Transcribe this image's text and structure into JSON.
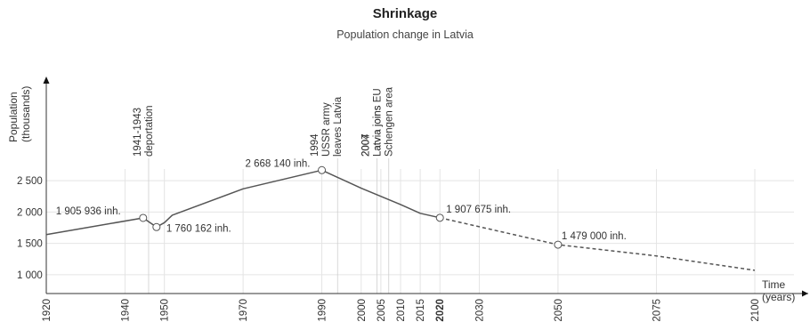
{
  "chart_data": {
    "type": "line",
    "title": "Shrinkage",
    "subtitle": "Population change in Latvia",
    "ylabel_lines": [
      "Population",
      "(thousands)"
    ],
    "xlabel_lines": [
      "Time",
      "(years)"
    ],
    "ylim": [
      700,
      2700
    ],
    "xlim": [
      1920,
      2100
    ],
    "y_ticks": [
      {
        "value": 1000,
        "label": "1 000"
      },
      {
        "value": 1500,
        "label": "1 500"
      },
      {
        "value": 2000,
        "label": "2 000"
      },
      {
        "value": 2500,
        "label": "2 500"
      }
    ],
    "x_ticks": [
      {
        "value": 1920,
        "label": "1920",
        "bold": false
      },
      {
        "value": 1940,
        "label": "1940",
        "bold": false
      },
      {
        "value": 1950,
        "label": "1950",
        "bold": false
      },
      {
        "value": 1970,
        "label": "1970",
        "bold": false
      },
      {
        "value": 1990,
        "label": "1990",
        "bold": false
      },
      {
        "value": 2000,
        "label": "2000",
        "bold": false
      },
      {
        "value": 2005,
        "label": "2005",
        "bold": false
      },
      {
        "value": 2010,
        "label": "2010",
        "bold": false
      },
      {
        "value": 2015,
        "label": "2015",
        "bold": false
      },
      {
        "value": 2020,
        "label": "2020",
        "bold": true
      },
      {
        "value": 2030,
        "label": "2030",
        "bold": false
      },
      {
        "value": 2050,
        "label": "2050",
        "bold": false
      },
      {
        "value": 2075,
        "label": "2075",
        "bold": false
      },
      {
        "value": 2100,
        "label": "2100",
        "bold": false
      }
    ],
    "series": [
      {
        "style": "solid",
        "x": [
          1920,
          1944.6,
          1948,
          1950,
          1952,
          1970,
          1990,
          2000,
          2010,
          2015,
          2020
        ],
        "y": [
          1640,
          1906,
          1760,
          1830,
          1950,
          2370,
          2668,
          2380,
          2120,
          1980,
          1908
        ]
      },
      {
        "style": "dashed",
        "x": [
          2020,
          2050,
          2075,
          2100
        ],
        "y": [
          1908,
          1479,
          1300,
          1070
        ]
      }
    ],
    "annotations": [
      {
        "x": 1944.6,
        "y": 1906,
        "text": "1 905 936 inh."
      },
      {
        "x": 1948,
        "y": 1760,
        "text": "1 760 162 inh."
      },
      {
        "x": 1990,
        "y": 2668,
        "text": "2 668 140 inh."
      },
      {
        "x": 2020,
        "y": 1908,
        "text": "1 907 675 inh."
      },
      {
        "x": 2050,
        "y": 1479,
        "text": "1 479 000 inh."
      }
    ],
    "events": [
      {
        "x": 1946,
        "lines": [
          "1941-1943",
          "deportation"
        ]
      },
      {
        "x": 1994,
        "lines": [
          "1994",
          "USSR army",
          "leaves Latvia"
        ]
      },
      {
        "x": 2004,
        "lines": [
          "2004",
          "Latvia joins EU"
        ]
      },
      {
        "x": 2007,
        "lines": [
          "2007",
          "Latvia joins",
          "Schengen area"
        ]
      }
    ]
  }
}
